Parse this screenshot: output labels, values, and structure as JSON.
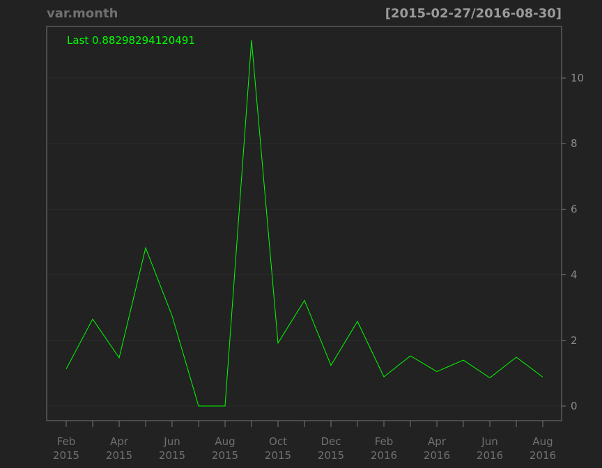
{
  "chart_data": {
    "type": "line",
    "title": "var.month",
    "date_range": "[2015-02-27/2016-08-30]",
    "last_label": "Last 0.88298294120491",
    "x": [
      "2015-02-27",
      "2015-03-31",
      "2015-04-30",
      "2015-05-29",
      "2015-06-30",
      "2015-07-31",
      "2015-08-31",
      "2015-09-30",
      "2015-10-30",
      "2015-11-30",
      "2015-12-31",
      "2016-01-29",
      "2016-02-29",
      "2016-03-31",
      "2016-04-29",
      "2016-05-31",
      "2016-06-30",
      "2016-07-29",
      "2016-08-30"
    ],
    "series": [
      {
        "values": [
          1.13,
          2.65,
          1.47,
          4.82,
          2.75,
          0.0,
          0.0,
          11.15,
          1.92,
          3.22,
          1.24,
          2.58,
          0.89,
          1.53,
          1.05,
          1.4,
          0.86,
          1.49,
          0.88298294120491
        ]
      }
    ],
    "x_ticks": [
      {
        "index": 0,
        "month": "Feb",
        "year": "2015"
      },
      {
        "index": 2,
        "month": "Apr",
        "year": "2015"
      },
      {
        "index": 4,
        "month": "Jun",
        "year": "2015"
      },
      {
        "index": 6,
        "month": "Aug",
        "year": "2015"
      },
      {
        "index": 8,
        "month": "Oct",
        "year": "2015"
      },
      {
        "index": 10,
        "month": "Dec",
        "year": "2015"
      },
      {
        "index": 12,
        "month": "Feb",
        "year": "2016"
      },
      {
        "index": 14,
        "month": "Apr",
        "year": "2016"
      },
      {
        "index": 16,
        "month": "Jun",
        "year": "2016"
      },
      {
        "index": 18,
        "month": "Aug",
        "year": "2016"
      }
    ],
    "y_ticks": [
      0,
      2,
      4,
      6,
      8,
      10
    ],
    "ylim": [
      0,
      11.15
    ],
    "grid": true,
    "colors": {
      "background": "#222222",
      "line": "#00ff00",
      "grid": "#2c2c2c",
      "axis": "#777777"
    }
  }
}
